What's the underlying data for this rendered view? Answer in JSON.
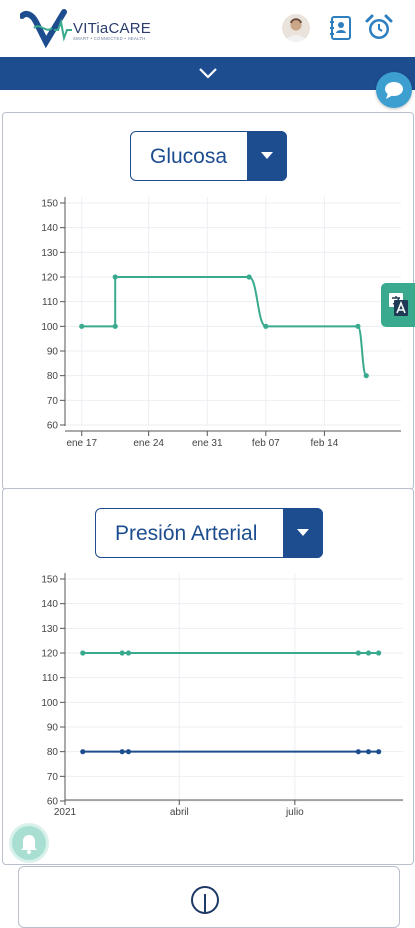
{
  "header": {
    "brand": "VITiaCARE",
    "tagline": "SMART • CONNECTED • HEALTH",
    "icons": [
      "avatar",
      "contacts-book-icon",
      "alarm-clock-icon"
    ]
  },
  "colors": {
    "primary": "#1e4d8f",
    "green_line": "#3aaa8f",
    "accent_blue": "#3d9fcf"
  },
  "glucose": {
    "selected": "Glucosa",
    "chart_data": {
      "type": "line",
      "title": "",
      "y_ticks": [
        "150",
        "140",
        "130",
        "120",
        "110",
        "100",
        "90",
        "80",
        "70",
        "60"
      ],
      "x_ticks": [
        "ene 17",
        "ene 24",
        "ene 31",
        "feb 07",
        "feb 14"
      ],
      "ylim": [
        60,
        150
      ],
      "series": [
        {
          "color": "#3aaa8f",
          "x": [
            "2021-01-16",
            "2021-01-20",
            "2021-01-20",
            "2021-02-05",
            "2021-02-07",
            "2021-02-18",
            "2021-02-19"
          ],
          "y": [
            100,
            100,
            120,
            120,
            100,
            100,
            80
          ]
        }
      ]
    }
  },
  "pressure": {
    "selected": "Presión Arterial",
    "chart_data": {
      "type": "line",
      "title": "",
      "y_ticks": [
        "150",
        "140",
        "130",
        "120",
        "110",
        "100",
        "90",
        "80",
        "70",
        "60"
      ],
      "x_ticks": [
        "2021",
        "abril",
        "julio"
      ],
      "ylim": [
        60,
        150
      ],
      "series": [
        {
          "color": "#3aaa8f",
          "x": [
            "2021-01-15",
            "2021-02-15",
            "2021-02-20",
            "2021-08-20",
            "2021-08-28",
            "2021-09-05"
          ],
          "y": [
            120,
            120,
            120,
            120,
            120,
            120
          ]
        },
        {
          "color": "#1e4d8f",
          "x": [
            "2021-01-15",
            "2021-02-15",
            "2021-02-20",
            "2021-08-20",
            "2021-08-28",
            "2021-09-05"
          ],
          "y": [
            80,
            80,
            80,
            80,
            80,
            80
          ]
        }
      ]
    }
  }
}
